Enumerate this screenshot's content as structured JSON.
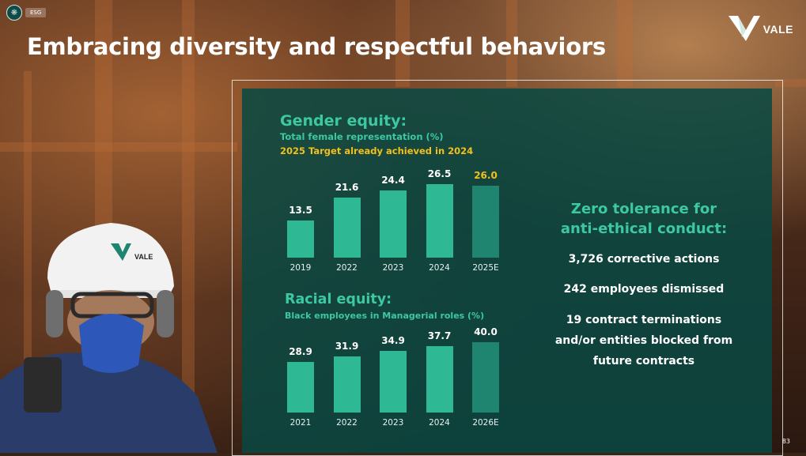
{
  "header": {
    "section_label": "ESG",
    "title": "Embracing diversity and respectful behaviors",
    "logo_text": "VALE"
  },
  "gender": {
    "title": "Gender equity:",
    "subtitle": "Total female representation (%)",
    "target_note": "2025 Target already achieved in 2024",
    "chart_data": {
      "type": "bar",
      "categories": [
        "2019",
        "2022",
        "2023",
        "2024",
        "2025E"
      ],
      "values": [
        13.5,
        21.6,
        24.4,
        26.5,
        26.0
      ],
      "value_labels": [
        "13.5",
        "21.6",
        "24.4",
        "26.5",
        "26.0"
      ],
      "title": "Total female representation (%)",
      "estimate_index": 4,
      "ylim": [
        0,
        30
      ]
    }
  },
  "racial": {
    "title": "Racial equity:",
    "subtitle": "Black employees in Managerial roles (%)",
    "chart_data": {
      "type": "bar",
      "categories": [
        "2021",
        "2022",
        "2023",
        "2024",
        "2026E"
      ],
      "values": [
        28.9,
        31.9,
        34.9,
        37.7,
        40.0
      ],
      "value_labels": [
        "28.9",
        "31.9",
        "34.9",
        "37.7",
        "40.0"
      ],
      "title": "Black employees in Managerial roles (%)",
      "estimate_index": 4,
      "ylim": [
        0,
        40
      ]
    }
  },
  "zero_tolerance": {
    "title_line1": "Zero tolerance for",
    "title_line2": "anti-ethical conduct:",
    "stat1": "3,726 corrective actions",
    "stat2": "242 employees dismissed",
    "stat3_line1": "19 contract terminations",
    "stat3_line2": "and/or entities blocked from",
    "stat3_line3": "future contracts"
  },
  "page_number": "83",
  "colors": {
    "accent": "#3cc8a0",
    "bar": "#2eb894",
    "target": "#f3c01a",
    "panel": "#084842"
  }
}
